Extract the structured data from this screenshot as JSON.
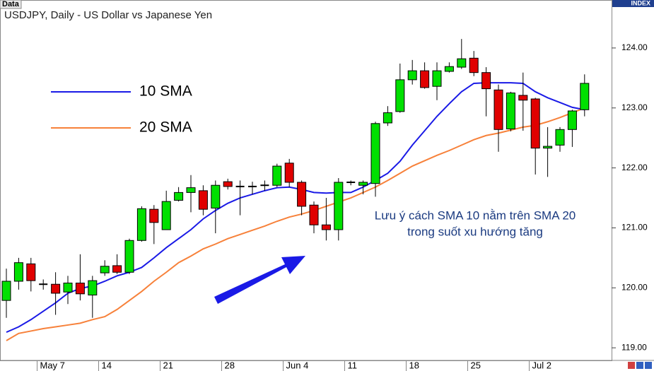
{
  "chart_data": {
    "type": "candlestick",
    "title": "USDJPY, Daily - US Dollar vs Japanese Yen",
    "panel_label": "Data",
    "axis_label": "INDEX",
    "categories": [
      null,
      null,
      null,
      "May 7",
      null,
      null,
      null,
      null,
      "14",
      null,
      null,
      null,
      null,
      "21",
      null,
      null,
      null,
      null,
      "28",
      null,
      null,
      null,
      null,
      "Jun 4",
      null,
      null,
      null,
      null,
      "11",
      null,
      null,
      null,
      null,
      "18",
      null,
      null,
      null,
      null,
      "25",
      null,
      null,
      null,
      null,
      "Jul 2",
      null,
      null,
      null,
      null
    ],
    "open": [
      119.79,
      120.11,
      120.4,
      120.06,
      120.06,
      119.93,
      120.08,
      119.88,
      120.25,
      120.37,
      120.26,
      120.79,
      121.31,
      120.97,
      121.46,
      121.59,
      121.62,
      121.33,
      121.77,
      121.69,
      121.68,
      121.69,
      121.71,
      122.08,
      121.76,
      121.38,
      121.05,
      120.97,
      121.75,
      121.71,
      121.74,
      122.75,
      122.94,
      123.47,
      123.62,
      123.36,
      123.61,
      123.68,
      123.83,
      123.59,
      123.3,
      122.65,
      123.21,
      123.15,
      122.33,
      122.38,
      122.64,
      122.97
    ],
    "high": [
      120.32,
      120.5,
      120.5,
      120.14,
      120.26,
      120.2,
      120.56,
      120.2,
      120.46,
      120.56,
      120.82,
      121.36,
      121.38,
      121.62,
      121.68,
      121.88,
      121.71,
      121.79,
      121.82,
      121.79,
      121.77,
      121.79,
      122.07,
      122.15,
      121.79,
      121.44,
      121.5,
      121.83,
      121.79,
      121.79,
      122.77,
      123.03,
      123.74,
      123.8,
      123.76,
      123.76,
      123.76,
      124.15,
      123.95,
      123.68,
      123.39,
      123.27,
      123.59,
      123.17,
      122.68,
      122.68,
      122.97,
      123.56
    ],
    "low": [
      119.5,
      119.97,
      119.94,
      119.97,
      119.55,
      119.73,
      119.79,
      119.5,
      120.2,
      120.23,
      120.23,
      120.77,
      120.73,
      120.97,
      121.44,
      121.26,
      121.21,
      120.91,
      121.64,
      121.21,
      121.56,
      121.62,
      121.68,
      121.68,
      121.21,
      120.91,
      120.79,
      120.79,
      121.71,
      121.56,
      121.52,
      122.7,
      122.92,
      123.39,
      123.32,
      123.13,
      123.59,
      123.65,
      123.53,
      122.86,
      122.27,
      122.61,
      122.62,
      121.89,
      121.85,
      122.27,
      122.35,
      122.86
    ],
    "close": [
      120.11,
      120.42,
      120.12,
      120.05,
      119.91,
      120.08,
      119.9,
      120.12,
      120.36,
      120.26,
      120.79,
      121.32,
      121.09,
      121.44,
      121.59,
      121.67,
      121.31,
      121.71,
      121.69,
      121.69,
      121.69,
      121.71,
      122.03,
      121.76,
      121.36,
      121.05,
      120.97,
      121.76,
      121.76,
      121.76,
      122.74,
      122.92,
      123.47,
      123.62,
      123.34,
      123.62,
      123.69,
      123.82,
      123.59,
      123.32,
      122.64,
      123.25,
      123.13,
      122.33,
      122.36,
      122.64,
      122.95,
      123.41
    ],
    "up_color": "#00e000",
    "down_color": "#e00000",
    "series": [
      {
        "name": "10 SMA",
        "color": "#1a1ae6",
        "values": [
          119.26,
          119.35,
          119.47,
          119.61,
          119.75,
          119.91,
          119.99,
          120.03,
          120.11,
          120.2,
          120.26,
          120.34,
          120.5,
          120.67,
          120.82,
          120.97,
          121.15,
          121.29,
          121.41,
          121.5,
          121.56,
          121.62,
          121.67,
          121.68,
          121.64,
          121.59,
          121.58,
          121.59,
          121.59,
          121.68,
          121.79,
          121.91,
          122.11,
          122.38,
          122.62,
          122.86,
          123.07,
          123.27,
          123.41,
          123.42,
          123.42,
          123.42,
          123.41,
          123.27,
          123.17,
          123.09,
          123.01,
          122.97
        ]
      },
      {
        "name": "20 SMA",
        "color": "#f7813a",
        "values": [
          119.12,
          119.24,
          119.28,
          119.32,
          119.35,
          119.38,
          119.41,
          119.47,
          119.52,
          119.64,
          119.79,
          119.94,
          120.11,
          120.26,
          120.42,
          120.53,
          120.65,
          120.73,
          120.82,
          120.89,
          120.96,
          121.03,
          121.11,
          121.18,
          121.23,
          121.29,
          121.36,
          121.43,
          121.5,
          121.59,
          121.68,
          121.79,
          121.91,
          122.03,
          122.12,
          122.21,
          122.29,
          122.38,
          122.47,
          122.54,
          122.58,
          122.63,
          122.68,
          122.71,
          122.77,
          122.84,
          122.92,
          123.0
        ]
      }
    ],
    "annotation": [
      "Lưu ý cách SMA 10 nằm trên SMA 20",
      "trong suốt xu hướng tăng"
    ],
    "ylim": [
      118.79,
      124.8
    ],
    "yticks": [
      {
        "value": 119,
        "label": "119.00"
      },
      {
        "value": 120,
        "label": "120.00"
      },
      {
        "value": 121,
        "label": "121.00"
      },
      {
        "value": 122,
        "label": "122.00"
      },
      {
        "value": 123,
        "label": "123.00"
      },
      {
        "value": 124,
        "label": "124.00"
      }
    ]
  }
}
